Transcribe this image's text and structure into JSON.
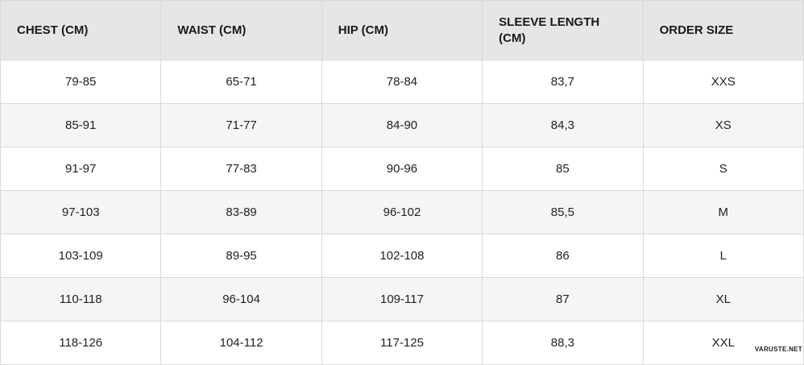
{
  "headers": [
    "CHEST (CM)",
    "WAIST (CM)",
    "HIP (CM)",
    "SLEEVE LENGTH (CM)",
    "ORDER SIZE"
  ],
  "rows": [
    [
      "79-85",
      "65-71",
      "78-84",
      "83,7",
      "XXS"
    ],
    [
      "85-91",
      "71-77",
      "84-90",
      "84,3",
      "XS"
    ],
    [
      "91-97",
      "77-83",
      "90-96",
      "85",
      "S"
    ],
    [
      "97-103",
      "83-89",
      "96-102",
      "85,5",
      "M"
    ],
    [
      "103-109",
      "89-95",
      "102-108",
      "86",
      "L"
    ],
    [
      "110-118",
      "96-104",
      "109-117",
      "87",
      "XL"
    ],
    [
      "118-126",
      "104-112",
      "117-125",
      "88,3",
      "XXL"
    ]
  ],
  "watermark": "VARUSTE.NET"
}
